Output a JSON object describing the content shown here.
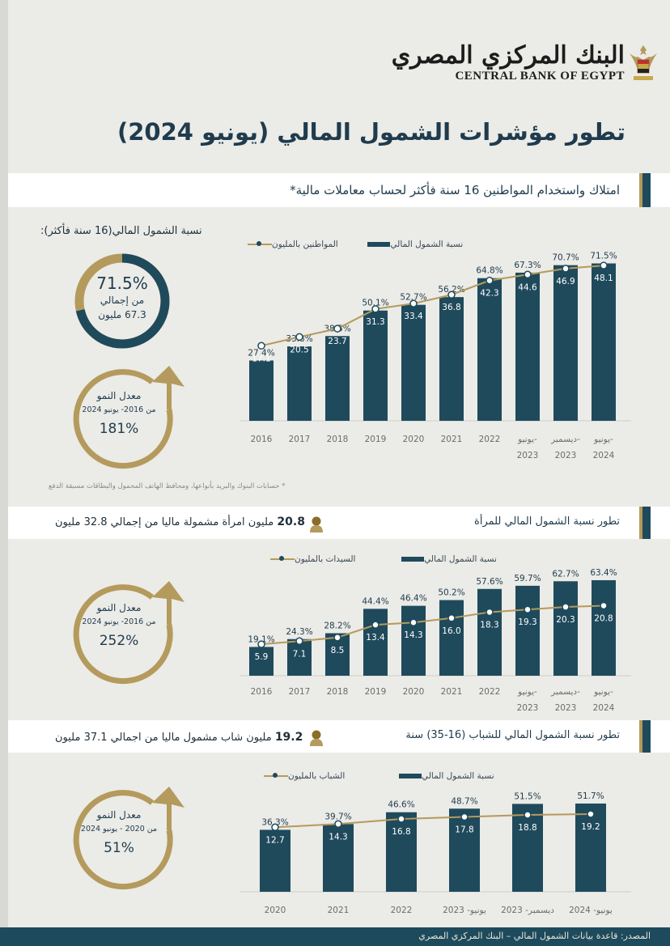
{
  "header": {
    "bank_name_ar": "البنك المركزي المصري",
    "bank_name_en": "CENTRAL BANK OF EGYPT",
    "main_title": "تطور مؤشرات الشمول المالي (يونيو 2024)"
  },
  "colors": {
    "bar": "#1f4a5c",
    "line": "#b49a5c",
    "marker": "#1f4a5c",
    "band_accent": "#1f4a5c",
    "gold": "#b49a5c"
  },
  "section1": {
    "title": "امتلاك واستخدام المواطنين 16 سنة فأكثر لحساب معاملات مالية*",
    "donut_title": "نسبة الشمول المالي(16 سنة فأكثر):",
    "donut_percent": "71.5%",
    "donut_mid": "من إجمالي",
    "donut_bottom": "67.3 مليون",
    "donut_fraction": 0.715,
    "growth_label": "معدل النمو",
    "growth_period": "من 2016- يونيو 2024",
    "growth_value": "181%",
    "legend_bar": "نسبة الشمول المالي",
    "legend_line": "المواطنين بالمليون",
    "footnote": "* حسابات البنوك والبريد بأنواعها، ومحافظ الهاتف المحمول والبطاقات مسبقة الدفع"
  },
  "section2": {
    "title": "تطور نسبة الشمول المالي للمرأة",
    "headline_num": "20.8",
    "headline_text": "مليون امرأة مشمولة ماليا من إجمالي 32.8 مليون",
    "growth_label": "معدل النمو",
    "growth_period": "من 2016- يونيو 2024",
    "growth_value": "252%",
    "legend_bar": "نسبة الشمول المالي",
    "legend_line": "السيدات بالمليون"
  },
  "section3": {
    "title": "تطور نسبة الشمول المالي للشباب (16-35) سنة",
    "headline_num": "19.2",
    "headline_text": "مليون شاب مشمول ماليا من اجمالي 37.1 مليون",
    "growth_label": "معدل النمو",
    "growth_period": "من 2020 - يونيو 2024",
    "growth_value": "51%",
    "legend_bar": "نسبة الشمول المالي",
    "legend_line": "الشباب بالمليون"
  },
  "chart_data": [
    {
      "type": "bar",
      "categories": [
        "2016",
        "2017",
        "2018",
        "2019",
        "2020",
        "2021",
        "2022",
        "يونيو-2023",
        "ديسمبر-2023",
        "يونيو-2024"
      ],
      "series": [
        {
          "name": "نسبة الشمول المالي",
          "kind": "bar",
          "values": [
            27.4,
            33.8,
            38.5,
            50.1,
            52.7,
            56.2,
            64.8,
            67.3,
            70.7,
            71.5
          ],
          "labels": [
            "27.4%",
            "33.8%",
            "38.5%",
            "50.1%",
            "52.7%",
            "56.2%",
            "64.8%",
            "67.3%",
            "70.7%",
            "71.5%"
          ]
        },
        {
          "name": "المواطنين بالمليون",
          "kind": "line",
          "values": [
            17.1,
            20.5,
            23.7,
            31.3,
            33.4,
            36.8,
            42.3,
            44.6,
            46.9,
            48.1
          ],
          "labels": [
            "17.1",
            "20.5",
            "23.7",
            "31.3",
            "33.4",
            "36.8",
            "42.3",
            "44.6",
            "46.9",
            "48.1"
          ]
        }
      ],
      "ylim": [
        0,
        75
      ]
    },
    {
      "type": "bar",
      "categories": [
        "2016",
        "2017",
        "2018",
        "2019",
        "2020",
        "2021",
        "2022",
        "يونيو-2023",
        "ديسمبر-2023",
        "يونيو-2024"
      ],
      "series": [
        {
          "name": "نسبة الشمول المالي",
          "kind": "bar",
          "values": [
            19.1,
            24.3,
            28.2,
            44.4,
            46.4,
            50.2,
            57.6,
            59.7,
            62.7,
            63.4
          ],
          "labels": [
            "19.1%",
            "24.3%",
            "28.2%",
            "44.4%",
            "46.4%",
            "50.2%",
            "57.6%",
            "59.7%",
            "62.7%",
            "63.4%"
          ]
        },
        {
          "name": "السيدات بالمليون",
          "kind": "line",
          "values": [
            5.9,
            7.1,
            8.5,
            13.4,
            14.3,
            16.0,
            18.3,
            19.3,
            20.3,
            20.8
          ],
          "labels": [
            "5.9",
            "7.1",
            "8.5",
            "13.4",
            "14.3",
            "16.0",
            "18.3",
            "19.3",
            "20.3",
            "20.8"
          ]
        }
      ],
      "ylim": [
        0,
        65
      ]
    },
    {
      "type": "bar",
      "categories": [
        "2020",
        "2021",
        "2022",
        "يونيو- 2023",
        "ديسمبر- 2023",
        "يونيو- 2024"
      ],
      "series": [
        {
          "name": "نسبة الشمول المالي",
          "kind": "bar",
          "values": [
            36.3,
            39.7,
            46.6,
            48.7,
            51.5,
            51.7
          ],
          "labels": [
            "36.3%",
            "39.7%",
            "46.6%",
            "48.7%",
            "51.5%",
            "51.7%"
          ]
        },
        {
          "name": "الشباب بالمليون",
          "kind": "line",
          "values": [
            12.7,
            14.3,
            16.8,
            17.8,
            18.8,
            19.2
          ],
          "labels": [
            "12.7",
            "14.3",
            "16.8",
            "17.8",
            "18.8",
            "19.2"
          ]
        }
      ],
      "ylim": [
        0,
        55
      ]
    }
  ],
  "source": "المصدر: قاعدة بيانات الشمول المالي – البنك المركزي المصري"
}
